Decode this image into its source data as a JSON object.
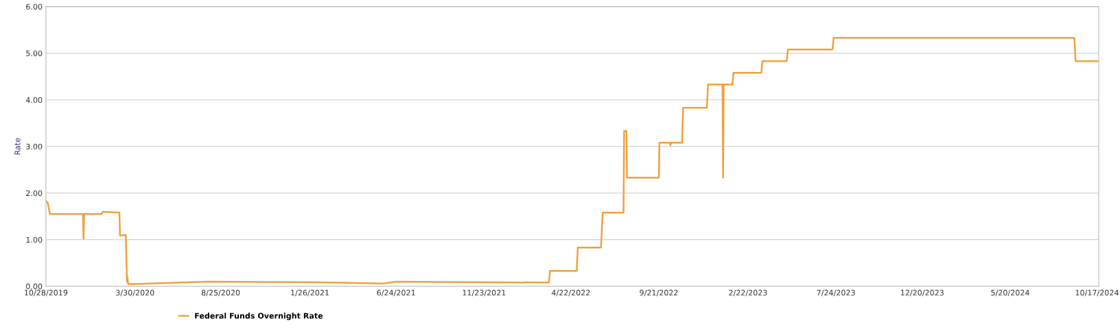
{
  "chart_data": {
    "type": "line",
    "ylabel": "Rate",
    "legend": "bottom left",
    "grid": "y",
    "marker": "none",
    "line_style": "solid",
    "xlim": [
      "2019-10-28",
      "2024-10-20"
    ],
    "ylim": [
      0,
      6
    ],
    "yticks": [
      {
        "value": 0,
        "label": "0.00"
      },
      {
        "value": 1,
        "label": "1.00"
      },
      {
        "value": 2,
        "label": "2.00"
      },
      {
        "value": 3,
        "label": "3.00"
      },
      {
        "value": 4,
        "label": "4.00"
      },
      {
        "value": 5,
        "label": "5.00"
      },
      {
        "value": 6,
        "label": "6.00"
      }
    ],
    "xticks": [
      {
        "value": "2019-10-28",
        "label": "10/28/2019"
      },
      {
        "value": "2020-03-30",
        "label": "3/30/2020"
      },
      {
        "value": "2020-08-25",
        "label": "8/25/2020"
      },
      {
        "value": "2021-01-26",
        "label": "1/26/2021"
      },
      {
        "value": "2021-06-24",
        "label": "6/24/2021"
      },
      {
        "value": "2021-11-23",
        "label": "11/23/2021"
      },
      {
        "value": "2022-04-22",
        "label": "4/22/2022"
      },
      {
        "value": "2022-09-21",
        "label": "9/21/2022"
      },
      {
        "value": "2023-02-22",
        "label": "2/22/2023"
      },
      {
        "value": "2023-07-24",
        "label": "7/24/2023"
      },
      {
        "value": "2023-12-20",
        "label": "12/20/2023"
      },
      {
        "value": "2024-05-20",
        "label": "5/20/2024"
      },
      {
        "value": "2024-10-17",
        "label": "10/17/2024"
      }
    ],
    "series": [
      {
        "name": "Federal Funds Overnight Rate",
        "color": "#f0a13c",
        "x": [
          "2019-10-28",
          "2019-10-31",
          "2019-11-04",
          "2019-12-31",
          "2020-01-01",
          "2020-01-02",
          "2020-02-01",
          "2020-02-03",
          "2020-03-03",
          "2020-03-04",
          "2020-03-14",
          "2020-03-16",
          "2020-03-17",
          "2020-03-18",
          "2020-03-26",
          "2020-06-15",
          "2020-08-01",
          "2021-01-26",
          "2021-06-01",
          "2021-06-24",
          "2022-03-15",
          "2022-03-17",
          "2022-05-02",
          "2022-05-04",
          "2022-06-13",
          "2022-06-16",
          "2022-07-22",
          "2022-07-23",
          "2022-07-27",
          "2022-07-28",
          "2022-09-21",
          "2022-09-22",
          "2022-10-10",
          "2022-10-11",
          "2022-10-12",
          "2022-10-31",
          "2022-11-02",
          "2022-12-13",
          "2022-12-15",
          "2023-01-09",
          "2023-01-10",
          "2023-01-11",
          "2023-01-26",
          "2023-01-28",
          "2023-03-17",
          "2023-03-19",
          "2023-04-30",
          "2023-05-02",
          "2023-07-18",
          "2023-07-20",
          "2024-09-08",
          "2024-09-10",
          "2024-10-20"
        ],
        "values": [
          1.83,
          1.8,
          1.55,
          1.55,
          1.02,
          1.55,
          1.55,
          1.6,
          1.58,
          1.09,
          1.1,
          0.1,
          0.2,
          0.05,
          0.05,
          0.08,
          0.1,
          0.09,
          0.06,
          0.1,
          0.08,
          0.33,
          0.33,
          0.83,
          0.83,
          1.58,
          1.58,
          3.33,
          3.33,
          2.33,
          2.33,
          3.08,
          3.08,
          3.02,
          3.08,
          3.08,
          3.83,
          3.83,
          4.33,
          4.33,
          2.33,
          4.33,
          4.33,
          4.58,
          4.58,
          4.83,
          4.83,
          5.08,
          5.08,
          5.33,
          5.33,
          4.83,
          4.83
        ]
      }
    ]
  }
}
